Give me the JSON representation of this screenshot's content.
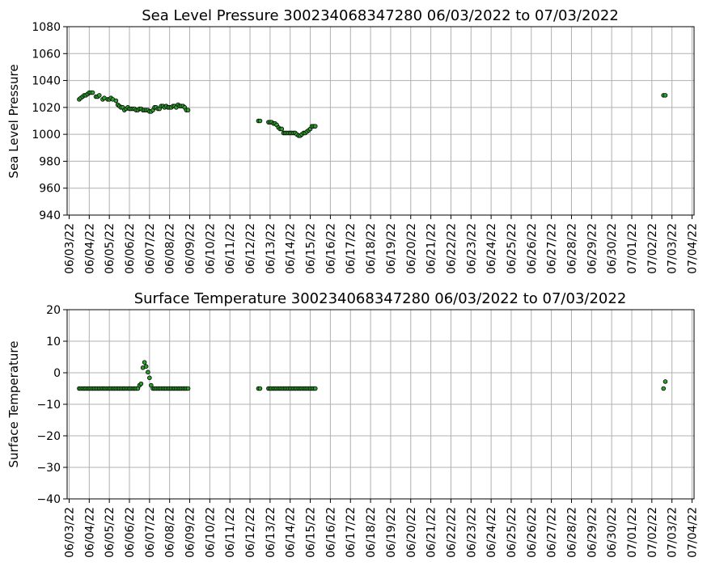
{
  "chart_data": [
    {
      "type": "scatter",
      "title": "Sea Level Pressure 300234068347280  06/03/2022 to 07/03/2022",
      "xlabel": "",
      "ylabel": "Sea Level Pressure",
      "ylim": [
        940,
        1080
      ],
      "yticks": [
        940,
        960,
        980,
        1000,
        1020,
        1040,
        1060,
        1080
      ],
      "xlim": [
        -0.1,
        31.1
      ],
      "xtick_labels": [
        "06/03/22",
        "06/04/22",
        "06/05/22",
        "06/06/22",
        "06/07/22",
        "06/08/22",
        "06/09/22",
        "06/10/22",
        "06/11/22",
        "06/12/22",
        "06/13/22",
        "06/14/22",
        "06/15/22",
        "06/16/22",
        "06/17/22",
        "06/18/22",
        "06/19/22",
        "06/20/22",
        "06/21/22",
        "06/22/22",
        "06/23/22",
        "06/24/22",
        "06/25/22",
        "06/26/22",
        "06/27/22",
        "06/28/22",
        "06/29/22",
        "06/30/22",
        "07/01/22",
        "07/02/22",
        "07/03/22",
        "07/04/22"
      ],
      "grid": true,
      "marker_color": "#2ca02c",
      "marker_edge": "#000000",
      "series": [
        {
          "x": [
            0.5,
            0.58,
            0.67,
            0.75,
            0.83,
            0.92,
            1.0,
            1.08,
            1.17,
            1.33,
            1.42,
            1.5,
            1.67,
            1.75,
            1.92,
            2.0,
            2.08,
            2.17,
            2.33,
            2.42,
            2.5,
            2.58,
            2.67,
            2.75,
            2.83,
            2.92,
            3.0,
            3.08,
            3.17,
            3.25,
            3.33,
            3.42,
            3.5,
            3.58,
            3.67,
            3.75,
            3.83,
            3.92,
            4.0,
            4.08,
            4.17,
            4.25,
            4.33,
            4.42,
            4.5,
            4.58,
            4.67,
            4.75,
            4.83,
            4.92,
            5.0,
            5.08,
            5.17,
            5.25,
            5.33,
            5.42,
            5.5,
            5.58,
            5.67,
            5.75,
            5.83,
            5.92,
            9.42,
            9.5,
            9.92,
            10.0,
            10.08,
            10.17,
            10.25,
            10.33,
            10.42,
            10.5,
            10.58,
            10.67,
            10.75,
            10.83,
            10.92,
            11.0,
            11.08,
            11.17,
            11.25,
            11.33,
            11.42,
            11.5,
            11.58,
            11.67,
            11.75,
            11.83,
            11.92,
            12.0,
            12.08,
            12.17,
            12.25,
            29.58,
            29.67
          ],
          "y": [
            1026,
            1027,
            1028,
            1029,
            1029,
            1030,
            1031,
            1031,
            1031,
            1028,
            1028,
            1029,
            1026,
            1027,
            1026,
            1026,
            1027,
            1026,
            1025,
            1022,
            1021,
            1020,
            1020,
            1018,
            1019,
            1020,
            1019,
            1019,
            1019,
            1019,
            1018,
            1018,
            1019,
            1019,
            1018,
            1018,
            1018,
            1018,
            1017,
            1017,
            1018,
            1020,
            1020,
            1019,
            1019,
            1021,
            1021,
            1020,
            1021,
            1020,
            1020,
            1020,
            1021,
            1021,
            1020,
            1022,
            1021,
            1021,
            1021,
            1020,
            1018,
            1018,
            1010,
            1010,
            1009,
            1009,
            1009,
            1008,
            1008,
            1007,
            1005,
            1004,
            1004,
            1001,
            1001,
            1001,
            1001,
            1001,
            1001,
            1001,
            1001,
            1000,
            999,
            999,
            1000,
            1001,
            1001,
            1002,
            1003,
            1004,
            1006,
            1006,
            1006,
            1029,
            1029
          ]
        }
      ]
    },
    {
      "type": "scatter",
      "title": "Surface Temperature 300234068347280  06/03/2022 to 07/03/2022",
      "xlabel": "",
      "ylabel": "Surface Temperature",
      "ylim": [
        -40,
        20
      ],
      "yticks": [
        -40,
        -30,
        -20,
        -10,
        0,
        10,
        20
      ],
      "xlim": [
        -0.1,
        31.1
      ],
      "xtick_labels": [
        "06/03/22",
        "06/04/22",
        "06/05/22",
        "06/06/22",
        "06/07/22",
        "06/08/22",
        "06/09/22",
        "06/10/22",
        "06/11/22",
        "06/12/22",
        "06/13/22",
        "06/14/22",
        "06/15/22",
        "06/16/22",
        "06/17/22",
        "06/18/22",
        "06/19/22",
        "06/20/22",
        "06/21/22",
        "06/22/22",
        "06/23/22",
        "06/24/22",
        "06/25/22",
        "06/26/22",
        "06/27/22",
        "06/28/22",
        "06/29/22",
        "06/30/22",
        "07/01/22",
        "07/02/22",
        "07/03/22",
        "07/04/22"
      ],
      "grid": true,
      "marker_color": "#2ca02c",
      "marker_edge": "#000000",
      "series": [
        {
          "x": [
            0.5,
            0.58,
            0.67,
            0.75,
            0.83,
            0.92,
            1.0,
            1.08,
            1.17,
            1.25,
            1.33,
            1.42,
            1.5,
            1.58,
            1.67,
            1.75,
            1.83,
            1.92,
            2.0,
            2.08,
            2.17,
            2.25,
            2.33,
            2.42,
            2.5,
            2.58,
            2.67,
            2.75,
            2.83,
            2.92,
            3.0,
            3.08,
            3.17,
            3.25,
            3.33,
            3.42,
            3.5,
            3.58,
            3.67,
            3.75,
            3.83,
            3.92,
            4.0,
            4.08,
            4.17,
            4.25,
            4.33,
            4.42,
            4.5,
            4.58,
            4.67,
            4.75,
            4.83,
            4.92,
            5.0,
            5.08,
            5.17,
            5.25,
            5.33,
            5.42,
            5.5,
            5.58,
            5.67,
            5.75,
            5.83,
            5.92,
            9.42,
            9.5,
            9.92,
            10.0,
            10.08,
            10.17,
            10.25,
            10.33,
            10.42,
            10.5,
            10.58,
            10.67,
            10.75,
            10.83,
            10.92,
            11.0,
            11.08,
            11.17,
            11.25,
            11.33,
            11.42,
            11.5,
            11.58,
            11.67,
            11.75,
            11.83,
            11.92,
            12.0,
            12.08,
            12.17,
            12.25,
            29.58,
            29.67
          ],
          "y": [
            -5,
            -5,
            -5,
            -5,
            -5,
            -5,
            -5,
            -5,
            -5,
            -5,
            -5,
            -5,
            -5,
            -5,
            -5,
            -5,
            -5,
            -5,
            -5,
            -5,
            -5,
            -5,
            -5,
            -5,
            -5,
            -5,
            -5,
            -5,
            -5,
            -5,
            -5,
            -5,
            -5,
            -5,
            -5,
            -5,
            -4,
            -3.5,
            1.6,
            3.3,
            2.0,
            0.2,
            -1.6,
            -4,
            -5,
            -5,
            -5,
            -5,
            -5,
            -5,
            -5,
            -5,
            -5,
            -5,
            -5,
            -5,
            -5,
            -5,
            -5,
            -5,
            -5,
            -5,
            -5,
            -5,
            -5,
            -5,
            -5,
            -5,
            -5,
            -5,
            -5,
            -5,
            -5,
            -5,
            -5,
            -5,
            -5,
            -5,
            -5,
            -5,
            -5,
            -5,
            -5,
            -5,
            -5,
            -5,
            -5,
            -5,
            -5,
            -5,
            -5,
            -5,
            -5,
            -5,
            -5,
            -5,
            -5,
            -5,
            -2.8
          ]
        }
      ]
    }
  ]
}
